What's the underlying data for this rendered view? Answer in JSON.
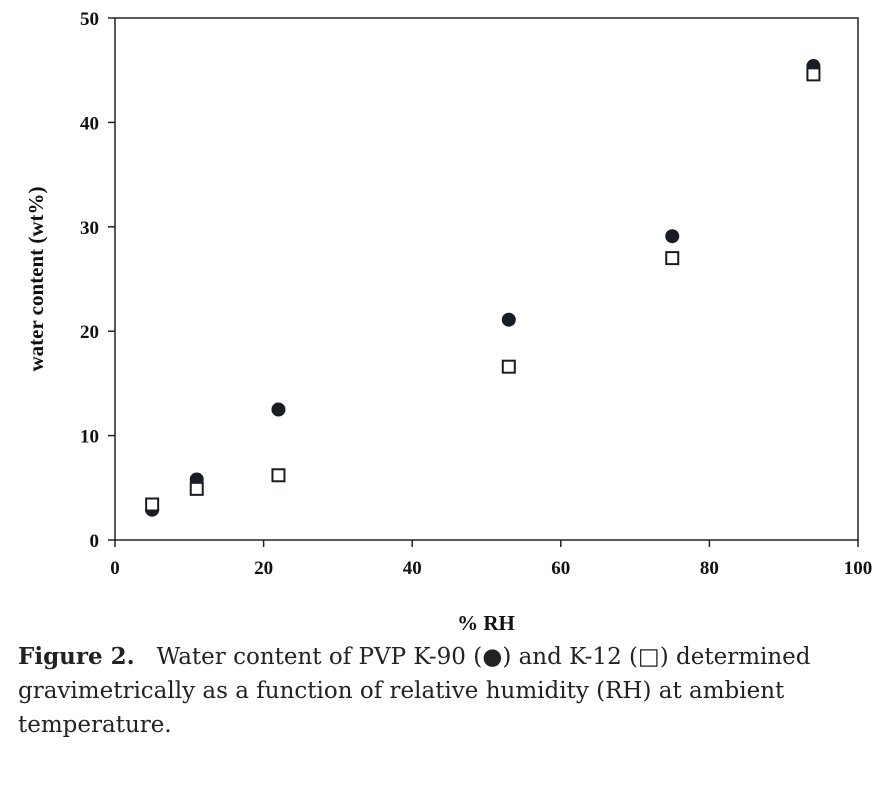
{
  "chart_data": {
    "type": "scatter",
    "xlabel": "% RH",
    "ylabel": "water content (wt%)",
    "xlim": [
      0,
      100
    ],
    "ylim": [
      0,
      50
    ],
    "xticks": [
      "0",
      "20",
      "40",
      "60",
      "80",
      "100"
    ],
    "yticks": [
      "0",
      "10",
      "20",
      "30",
      "40",
      "50"
    ],
    "grid": false,
    "series": [
      {
        "marker": "filled-circle",
        "color": "#1a1c24",
        "x": [
          5,
          11,
          22,
          53,
          75,
          94
        ],
        "y": [
          2.9,
          5.8,
          12.5,
          21.1,
          29.1,
          45.4
        ]
      },
      {
        "marker": "open-square",
        "color": "#1a1c24",
        "x": [
          5,
          11,
          22,
          53,
          75,
          94
        ],
        "y": [
          3.4,
          4.9,
          6.2,
          16.6,
          27.0,
          44.6
        ]
      }
    ]
  },
  "caption": {
    "label": "Figure 2.",
    "text_before": "Water content of PVP K-90 (",
    "symbol1": "●",
    "text_middle": ") and K-12 (",
    "symbol2": "□",
    "text_after": ") determined gravimetrically as a function of relative humidity (RH) at ambient temperature."
  }
}
